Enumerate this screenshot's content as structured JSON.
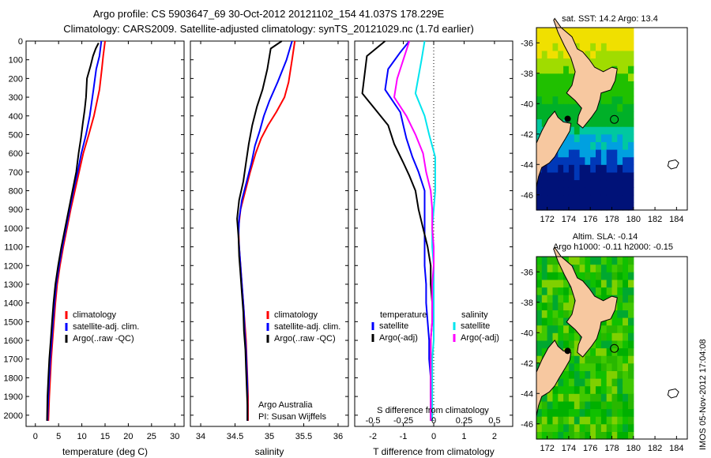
{
  "header": {
    "line1": "Argo profile: CS 5903647_69 30-Oct-2012 20121102_154 41.037S 178.229E",
    "line2": "Climatology: CARS2009. Satellite-adjusted climatology: synTS_20121029.nc (1.7d earlier)"
  },
  "colors": {
    "climatology": "#ff0000",
    "satellite": "#0000ff",
    "argo": "#000000",
    "s_satellite": "#00e5ee",
    "s_argo": "#ff00ff",
    "land": "#f7c8a0",
    "deep_water": "#001070"
  },
  "annotations": {
    "argo_australia": "Argo Australia",
    "pi": "PI: Susan Wijffels",
    "timestamp": "IMOS 05-Nov-2012 17:04:08"
  },
  "chart_data": [
    {
      "id": "temperature",
      "type": "line",
      "xlabel": "temperature (deg C)",
      "ylabel": "",
      "xlim": [
        -2,
        32
      ],
      "ylim": [
        2060,
        0
      ],
      "xticks": [
        0,
        5,
        10,
        15,
        20,
        25,
        30
      ],
      "yticks": [
        0,
        100,
        200,
        300,
        400,
        500,
        600,
        700,
        800,
        900,
        1000,
        1100,
        1200,
        1300,
        1400,
        1500,
        1600,
        1700,
        1800,
        1900,
        2000
      ],
      "legend": [
        "climatology",
        "satellite-adj. clim.",
        "Argo(..raw -QC)"
      ],
      "series": [
        {
          "name": "climatology",
          "color": "#ff0000",
          "points": [
            [
              15,
              0
            ],
            [
              14.6,
              80
            ],
            [
              14.3,
              150
            ],
            [
              13.8,
              260
            ],
            [
              12.6,
              400
            ],
            [
              11.5,
              500
            ],
            [
              10.3,
              600
            ],
            [
              9.4,
              700
            ],
            [
              8.5,
              800
            ],
            [
              7.6,
              900
            ],
            [
              6.8,
              1000
            ],
            [
              6.0,
              1100
            ],
            [
              5.3,
              1200
            ],
            [
              4.7,
              1300
            ],
            [
              4.3,
              1400
            ],
            [
              4.0,
              1500
            ],
            [
              3.7,
              1600
            ],
            [
              3.4,
              1700
            ],
            [
              3.2,
              1800
            ],
            [
              3.0,
              1900
            ],
            [
              2.8,
              2030
            ]
          ]
        },
        {
          "name": "satellite-adj. clim.",
          "color": "#0000ff",
          "points": [
            [
              14.2,
              0
            ],
            [
              13.8,
              80
            ],
            [
              13.1,
              150
            ],
            [
              12.5,
              260
            ],
            [
              11.7,
              400
            ],
            [
              10.9,
              500
            ],
            [
              9.9,
              600
            ],
            [
              9.1,
              700
            ],
            [
              8.2,
              800
            ],
            [
              7.4,
              900
            ],
            [
              6.6,
              1000
            ],
            [
              5.8,
              1100
            ],
            [
              5.1,
              1200
            ],
            [
              4.5,
              1300
            ],
            [
              4.1,
              1400
            ],
            [
              3.8,
              1500
            ],
            [
              3.5,
              1600
            ],
            [
              3.2,
              1700
            ],
            [
              3.0,
              1800
            ],
            [
              2.8,
              1900
            ],
            [
              2.6,
              2030
            ]
          ]
        },
        {
          "name": "Argo(..raw -QC)",
          "color": "#000000",
          "points": [
            [
              13.6,
              10
            ],
            [
              13.0,
              40
            ],
            [
              12.4,
              80
            ],
            [
              11.9,
              130
            ],
            [
              11.1,
              200
            ],
            [
              10.9,
              300
            ],
            [
              10.6,
              370
            ],
            [
              10.2,
              440
            ],
            [
              9.8,
              520
            ],
            [
              9.3,
              600
            ],
            [
              8.8,
              700
            ],
            [
              8.0,
              800
            ],
            [
              7.2,
              900
            ],
            [
              6.4,
              1000
            ],
            [
              5.6,
              1100
            ],
            [
              4.9,
              1200
            ],
            [
              4.3,
              1300
            ],
            [
              3.9,
              1400
            ],
            [
              3.6,
              1500
            ],
            [
              3.3,
              1600
            ],
            [
              3.0,
              1700
            ],
            [
              2.8,
              1800
            ],
            [
              2.6,
              1900
            ],
            [
              2.5,
              2030
            ]
          ]
        }
      ]
    },
    {
      "id": "salinity",
      "type": "line",
      "xlabel": "salinity",
      "ylabel": "",
      "xlim": [
        33.85,
        36.15
      ],
      "ylim": [
        2060,
        0
      ],
      "xticks": [
        34,
        34.5,
        35,
        35.5,
        36
      ],
      "xticklabels": [
        "34",
        "34.5",
        "35",
        "35.5",
        "36"
      ],
      "legend": [
        "climatology",
        "satellite-adj. clim.",
        "Argo(..raw -QC)"
      ],
      "series": [
        {
          "name": "climatology",
          "color": "#ff0000",
          "points": [
            [
              35.37,
              0
            ],
            [
              35.33,
              100
            ],
            [
              35.28,
              220
            ],
            [
              35.22,
              300
            ],
            [
              35.1,
              380
            ],
            [
              34.98,
              450
            ],
            [
              34.88,
              520
            ],
            [
              34.8,
              600
            ],
            [
              34.72,
              700
            ],
            [
              34.65,
              800
            ],
            [
              34.58,
              900
            ],
            [
              34.55,
              1000
            ],
            [
              34.56,
              1100
            ],
            [
              34.58,
              1200
            ],
            [
              34.6,
              1300
            ],
            [
              34.62,
              1400
            ],
            [
              34.64,
              1500
            ],
            [
              34.66,
              1600
            ],
            [
              34.67,
              1700
            ],
            [
              34.68,
              1800
            ],
            [
              34.69,
              1900
            ],
            [
              34.69,
              2030
            ]
          ]
        },
        {
          "name": "satellite-adj. clim.",
          "color": "#0000ff",
          "points": [
            [
              35.33,
              0
            ],
            [
              35.25,
              100
            ],
            [
              35.12,
              220
            ],
            [
              35.0,
              320
            ],
            [
              34.92,
              400
            ],
            [
              34.86,
              480
            ],
            [
              34.79,
              560
            ],
            [
              34.74,
              650
            ],
            [
              34.67,
              750
            ],
            [
              34.6,
              850
            ],
            [
              34.56,
              950
            ],
            [
              34.55,
              1050
            ],
            [
              34.57,
              1150
            ],
            [
              34.59,
              1250
            ],
            [
              34.61,
              1350
            ],
            [
              34.63,
              1450
            ],
            [
              34.64,
              1550
            ],
            [
              34.66,
              1650
            ],
            [
              34.67,
              1750
            ],
            [
              34.68,
              1850
            ],
            [
              34.68,
              1950
            ],
            [
              34.68,
              2030
            ]
          ]
        },
        {
          "name": "Argo(..raw -QC)",
          "color": "#000000",
          "points": [
            [
              35.18,
              0
            ],
            [
              35.02,
              40
            ],
            [
              34.97,
              150
            ],
            [
              34.9,
              260
            ],
            [
              34.82,
              350
            ],
            [
              34.75,
              450
            ],
            [
              34.7,
              550
            ],
            [
              34.66,
              650
            ],
            [
              34.62,
              750
            ],
            [
              34.56,
              850
            ],
            [
              34.53,
              950
            ],
            [
              34.55,
              1050
            ],
            [
              34.56,
              1150
            ],
            [
              34.58,
              1250
            ],
            [
              34.6,
              1350
            ],
            [
              34.62,
              1450
            ],
            [
              34.63,
              1550
            ],
            [
              34.65,
              1650
            ],
            [
              34.66,
              1750
            ],
            [
              34.67,
              1850
            ],
            [
              34.68,
              1950
            ],
            [
              34.68,
              2030
            ]
          ]
        }
      ],
      "annotations": [
        "Argo Australia",
        "PI: Susan Wijffels"
      ]
    },
    {
      "id": "difference",
      "type": "line",
      "xlabel": "T difference from climatology",
      "xlabel_top": "S difference from climatology",
      "xlim": [
        -2.6,
        2.6
      ],
      "ylim": [
        2060,
        0
      ],
      "xticks": [
        -2,
        -1,
        0,
        1,
        2
      ],
      "xticklabels": [
        "-2",
        "-1",
        "0",
        "1",
        "2"
      ],
      "sxticks": [
        -0.5,
        -0.25,
        0,
        0.25,
        0.5
      ],
      "sxticklabels": [
        "-0.5",
        "-0.25",
        "0",
        "0.25",
        "0.5"
      ],
      "legend_t_title": "temperature",
      "legend_s_title": "salinity",
      "legend": [
        "satellite",
        "Argo(-adj)",
        "satellite",
        "Argo(-adj)"
      ],
      "series": [
        {
          "name": "T satellite",
          "color": "#0000ff",
          "points": [
            [
              -0.8,
              0
            ],
            [
              -1.1,
              60
            ],
            [
              -1.5,
              150
            ],
            [
              -1.6,
              260
            ],
            [
              -1.1,
              380
            ],
            [
              -1.0,
              450
            ],
            [
              -0.9,
              520
            ],
            [
              -0.7,
              620
            ],
            [
              -0.5,
              700
            ],
            [
              -0.3,
              800
            ],
            [
              -0.3,
              900
            ],
            [
              -0.3,
              1000
            ],
            [
              -0.3,
              1100
            ],
            [
              -0.3,
              1200
            ],
            [
              -0.25,
              1300
            ],
            [
              -0.25,
              1400
            ],
            [
              -0.2,
              1500
            ],
            [
              -0.15,
              1600
            ],
            [
              -0.15,
              1700
            ],
            [
              -0.1,
              1800
            ],
            [
              -0.1,
              1900
            ],
            [
              -0.05,
              2030
            ]
          ]
        },
        {
          "name": "T Argo(-adj)",
          "color": "#000000",
          "points": [
            [
              -1.6,
              0
            ],
            [
              -2.2,
              80
            ],
            [
              -2.35,
              280
            ],
            [
              -2.0,
              350
            ],
            [
              -1.5,
              450
            ],
            [
              -1.3,
              550
            ],
            [
              -1.0,
              650
            ],
            [
              -0.8,
              720
            ],
            [
              -0.6,
              800
            ],
            [
              -0.5,
              900
            ],
            [
              -0.35,
              1000
            ],
            [
              -0.2,
              1100
            ],
            [
              -0.1,
              1200
            ],
            [
              -0.1,
              1300
            ],
            [
              -0.05,
              1400
            ],
            [
              -0.05,
              1500
            ],
            [
              -0.1,
              1600
            ],
            [
              -0.1,
              1700
            ],
            [
              -0.1,
              1800
            ],
            [
              -0.1,
              1900
            ],
            [
              -0.1,
              2030
            ]
          ]
        },
        {
          "name": "S satellite",
          "color": "#00e5ee",
          "points": [
            [
              -0.3,
              0
            ],
            [
              -0.4,
              100
            ],
            [
              -0.6,
              280
            ],
            [
              -0.3,
              400
            ],
            [
              -0.15,
              500
            ],
            [
              0.05,
              620
            ],
            [
              0.05,
              700
            ],
            [
              0.05,
              800
            ],
            [
              0.0,
              900
            ],
            [
              -0.05,
              1000
            ],
            [
              -0.05,
              1100
            ],
            [
              0.0,
              1200
            ],
            [
              0.0,
              1300
            ],
            [
              0.0,
              1400
            ],
            [
              0.0,
              1500
            ],
            [
              0.0,
              1600
            ],
            [
              -0.05,
              1700
            ],
            [
              -0.05,
              1800
            ],
            [
              -0.05,
              1900
            ],
            [
              -0.05,
              2030
            ]
          ]
        },
        {
          "name": "S Argo(-adj)",
          "color": "#ff00ff",
          "points": [
            [
              -0.8,
              0
            ],
            [
              -1.0,
              100
            ],
            [
              -1.2,
              200
            ],
            [
              -1.3,
              300
            ],
            [
              -0.9,
              400
            ],
            [
              -0.6,
              500
            ],
            [
              -0.35,
              600
            ],
            [
              -0.25,
              700
            ],
            [
              -0.1,
              800
            ],
            [
              -0.05,
              900
            ],
            [
              -0.05,
              1000
            ],
            [
              0.0,
              1100
            ],
            [
              0.0,
              1200
            ],
            [
              -0.05,
              1300
            ],
            [
              -0.05,
              1400
            ],
            [
              -0.05,
              1500
            ],
            [
              -0.1,
              1600
            ],
            [
              -0.1,
              1700
            ],
            [
              -0.1,
              1800
            ],
            [
              -0.1,
              1900
            ],
            [
              -0.1,
              2030
            ]
          ]
        }
      ]
    },
    {
      "id": "sst_map",
      "type": "heatmap",
      "title": "sat. SST: 14.2  Argo: 13.4",
      "xlim": [
        171,
        185
      ],
      "ylim": [
        -47,
        -35
      ],
      "xticks": [
        172,
        174,
        176,
        178,
        180,
        182,
        184
      ],
      "yticks": [
        -36,
        -38,
        -40,
        -42,
        -44,
        -46
      ],
      "data_lon_max": 180,
      "profile": [
        178.229,
        -41.037
      ],
      "argo_position": [
        173.9,
        -41.0
      ]
    },
    {
      "id": "sla_map",
      "type": "heatmap",
      "title": "Altim. SLA: -0.14",
      "subtitle": "Argo h1000: -0.11  h2000: -0.15",
      "xlim": [
        171,
        185
      ],
      "ylim": [
        -47,
        -35
      ],
      "xticks": [
        172,
        174,
        176,
        178,
        180,
        182,
        184
      ],
      "yticks": [
        -36,
        -38,
        -40,
        -42,
        -44,
        -46
      ],
      "data_lon_max": 180,
      "profile": [
        178.229,
        -41.037
      ],
      "argo_position": [
        173.9,
        -41.2
      ]
    }
  ]
}
